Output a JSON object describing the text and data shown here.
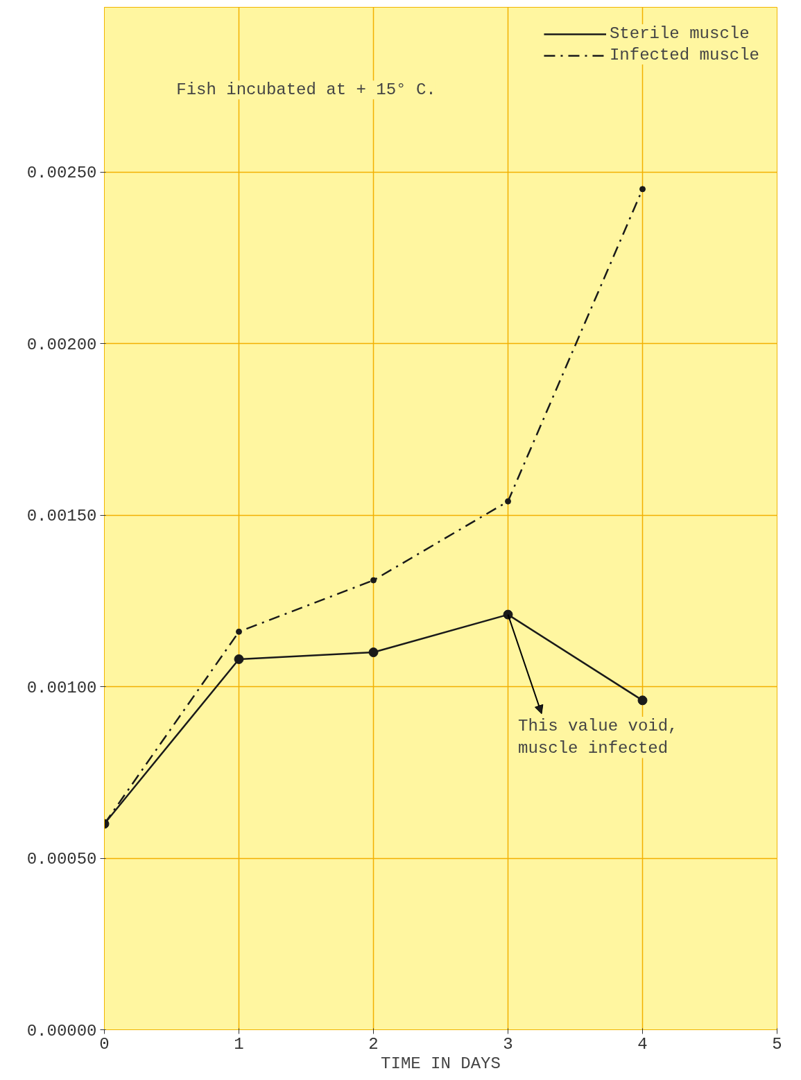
{
  "chart_data": {
    "type": "line",
    "xlabel": "TIME IN DAYS",
    "x": [
      0,
      1,
      2,
      3,
      4
    ],
    "series": [
      {
        "name": "Sterile muscle",
        "color": "#1a1a1a",
        "line_style": "solid",
        "values": [
          0.0006,
          0.00108,
          0.0011,
          0.00121,
          0.00096
        ]
      },
      {
        "name": "Infected muscle",
        "color": "#1a1a1a",
        "line_style": "dashed",
        "values": [
          0.0006,
          0.00116,
          0.00131,
          0.00154,
          0.00245
        ]
      }
    ],
    "xlim": [
      0,
      5
    ],
    "xticks": [
      0,
      1,
      2,
      3,
      4,
      5
    ],
    "ylim": [
      0,
      0.00298
    ],
    "yticks": [
      {
        "value": 0,
        "label": "0.00000"
      },
      {
        "value": 0.0005,
        "label": "0.00050"
      },
      {
        "value": 0.001,
        "label": "0.00100"
      },
      {
        "value": 0.0015,
        "label": "0.00150"
      },
      {
        "value": 0.002,
        "label": "0.00200"
      },
      {
        "value": 0.0025,
        "label": "0.00250"
      }
    ],
    "grid": true,
    "legend": "top right",
    "marker": "circle",
    "annotations": [
      "Fish incubated at + 15° C.",
      {
        "text": "This value void, muscle infected",
        "x": 3,
        "y": 0.00121
      }
    ]
  }
}
